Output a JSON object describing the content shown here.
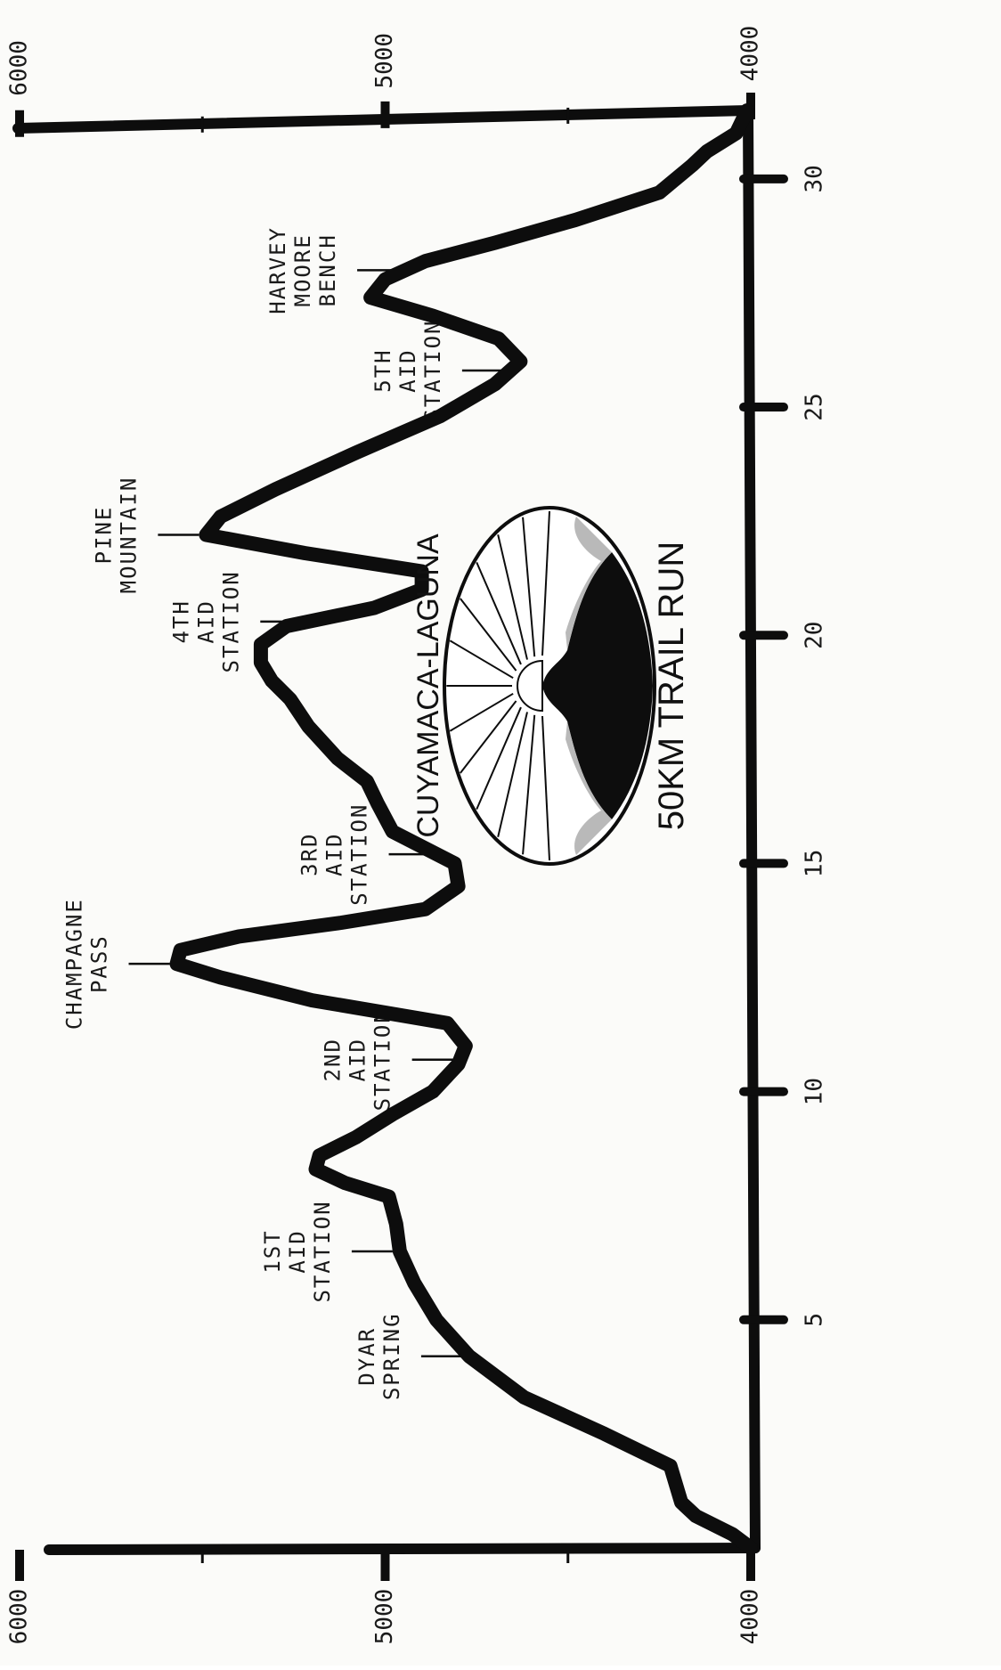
{
  "chart_data": {
    "type": "line",
    "title": "",
    "xlabel": "",
    "ylabel": "",
    "xlim": [
      0,
      31.5
    ],
    "ylim": [
      4000,
      6000
    ],
    "x_ticks": [
      5,
      10,
      15,
      20,
      25,
      30
    ],
    "y_ticks": [
      4000,
      5000,
      6000
    ],
    "grid": false,
    "orientation": "rotated 90 degrees clockwise",
    "series": [
      {
        "name": "",
        "x": [
          0.0,
          0.3,
          0.7,
          1.0,
          1.8,
          2.5,
          3.3,
          4.2,
          5.0,
          5.8,
          6.5,
          7.1,
          7.7,
          8.0,
          8.3,
          8.6,
          9.0,
          9.5,
          10.0,
          10.6,
          11.0,
          11.5,
          12.0,
          12.5,
          12.8,
          13.1,
          13.4,
          13.7,
          14.0,
          14.5,
          15.0,
          15.7,
          16.3,
          16.8,
          17.3,
          18.0,
          18.6,
          19.0,
          19.4,
          19.8,
          20.2,
          20.6,
          21.0,
          21.4,
          21.8,
          22.2,
          22.6,
          23.2,
          24.0,
          24.8,
          25.5,
          26.0,
          26.5,
          27.0,
          27.4,
          27.8,
          28.2,
          28.6,
          29.1,
          29.7,
          30.3,
          30.6,
          31.0,
          31.5
        ],
        "y": [
          4000,
          4050,
          4150,
          4190,
          4220,
          4400,
          4620,
          4770,
          4860,
          4920,
          4960,
          4970,
          4990,
          5110,
          5190,
          5180,
          5080,
          4980,
          4870,
          4800,
          4780,
          4830,
          5200,
          5450,
          5570,
          5560,
          5400,
          5120,
          4890,
          4800,
          4810,
          4980,
          5020,
          5050,
          5130,
          5210,
          5260,
          5310,
          5340,
          5340,
          5270,
          5030,
          4900,
          4900,
          5220,
          5490,
          5450,
          5300,
          5080,
          4850,
          4700,
          4630,
          4690,
          4870,
          5040,
          5000,
          4890,
          4700,
          4480,
          4250,
          4160,
          4120,
          4040,
          4010
        ]
      }
    ],
    "annotations": [
      {
        "lines": [
          "DYAR",
          "SPRING"
        ],
        "x": 4.2
      },
      {
        "lines": [
          "1ST",
          "AID",
          "STATION"
        ],
        "x": 6.5
      },
      {
        "lines": [
          "2ND",
          "AID",
          "STATION"
        ],
        "x": 10.7
      },
      {
        "lines": [
          "CHAMPAGNE",
          "PASS"
        ],
        "x": 12.8
      },
      {
        "lines": [
          "3RD",
          "AID",
          "STATION"
        ],
        "x": 15.2
      },
      {
        "lines": [
          "4TH",
          "AID",
          "STATION"
        ],
        "x": 20.3
      },
      {
        "lines": [
          "PINE",
          "MOUNTAIN"
        ],
        "x": 22.2
      },
      {
        "lines": [
          "5TH",
          "AID",
          "STATION"
        ],
        "x": 25.8
      },
      {
        "lines": [
          "HARVEY",
          "MOORE",
          "BENCH"
        ],
        "x": 28.0
      }
    ]
  },
  "logo": {
    "top_text": "CUYAMACA-LAGUNA",
    "bottom_text": "50KM TRAIL RUN"
  },
  "colors": {
    "ink": "#0d0d0d",
    "paper": "#fbfbf9",
    "stipple": "#b9b9b9"
  }
}
